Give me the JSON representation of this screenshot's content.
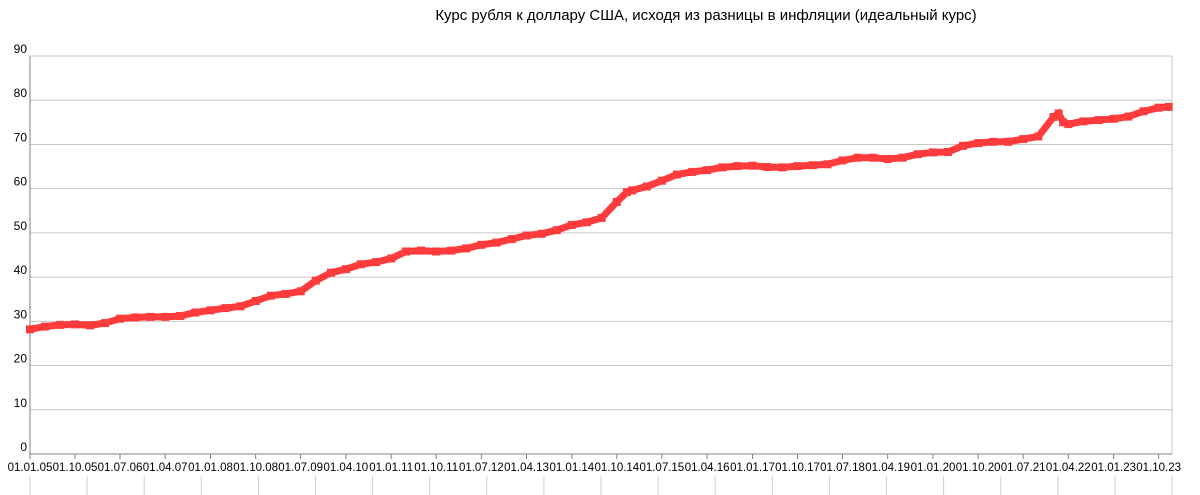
{
  "chart_data": {
    "type": "line",
    "title": "Курс рубля к доллару США, исходя из разницы в инфляции (идеальный курс)",
    "xlabel": "",
    "ylabel": "",
    "ylim": [
      0,
      90
    ],
    "yticks": [
      "0",
      "10",
      "20",
      "30",
      "40",
      "50",
      "60",
      "70",
      "80",
      "90"
    ],
    "grid": true,
    "legend": "none",
    "line_color": "#ff3b3b",
    "x_tick_labels": [
      "01.01.05",
      "01.10.05",
      "01.07.06",
      "01.04.07",
      "01.01.08",
      "01.10.08",
      "01.07.09",
      "01.04.10",
      "01.01.11",
      "01.10.11",
      "01.07.12",
      "01.04.13",
      "01.01.14",
      "01.10.14",
      "01.07.15",
      "01.04.16",
      "01.01.17",
      "01.10.17",
      "01.07.18",
      "01.04.19",
      "01.01.20",
      "01.10.20",
      "01.07.21",
      "01.04.22",
      "01.01.23",
      "01.10.23"
    ],
    "series": [
      {
        "x": [
          "01.01.05",
          "01.04.05",
          "01.07.05",
          "01.10.05",
          "01.01.06",
          "01.04.06",
          "01.07.06",
          "01.10.06",
          "01.01.07",
          "01.04.07",
          "01.07.07",
          "01.10.07",
          "01.01.08",
          "01.04.08",
          "01.07.08",
          "01.10.08",
          "01.01.09",
          "01.04.09",
          "01.07.09",
          "01.10.09",
          "01.01.10",
          "01.04.10",
          "01.07.10",
          "01.10.10",
          "01.01.11",
          "01.04.11",
          "01.07.11",
          "01.10.11",
          "01.01.12",
          "01.04.12",
          "01.07.12",
          "01.10.12",
          "01.01.13",
          "01.04.13",
          "01.07.13",
          "01.10.13",
          "01.01.14",
          "01.04.14",
          "01.07.14",
          "01.10.14",
          "01.12.14",
          "01.01.15",
          "01.04.15",
          "01.07.15",
          "01.10.15",
          "01.01.16",
          "01.04.16",
          "01.07.16",
          "01.10.16",
          "01.01.17",
          "01.04.17",
          "01.07.17",
          "01.10.17",
          "01.01.18",
          "01.04.18",
          "01.07.18",
          "01.10.18",
          "01.01.19",
          "01.04.19",
          "01.07.19",
          "01.10.19",
          "01.01.20",
          "01.04.20",
          "01.07.20",
          "01.10.20",
          "01.01.21",
          "01.04.21",
          "01.07.21",
          "01.10.21",
          "01.01.22",
          "01.02.22",
          "01.03.22",
          "01.04.22",
          "01.07.22",
          "01.10.22",
          "01.01.23",
          "01.04.23",
          "01.07.23",
          "01.10.23",
          "01.12.23"
        ],
        "values": [
          28.2,
          28.8,
          29.2,
          29.3,
          29.1,
          29.6,
          30.6,
          30.9,
          31.0,
          31.0,
          31.2,
          32.0,
          32.5,
          33.0,
          33.4,
          34.6,
          35.8,
          36.2,
          36.8,
          39.2,
          41.0,
          41.8,
          42.9,
          43.4,
          44.2,
          45.8,
          46.0,
          45.8,
          46.0,
          46.5,
          47.3,
          47.8,
          48.6,
          49.4,
          49.8,
          50.6,
          51.8,
          52.4,
          53.4,
          57.0,
          59.2,
          59.6,
          60.5,
          61.8,
          63.2,
          63.8,
          64.2,
          64.8,
          65.1,
          65.2,
          64.9,
          64.8,
          65.1,
          65.3,
          65.5,
          66.4,
          67.0,
          67.0,
          66.7,
          67.0,
          67.8,
          68.2,
          68.3,
          69.7,
          70.3,
          70.6,
          70.6,
          71.2,
          71.8,
          76.2,
          77.0,
          75.0,
          74.6,
          75.2,
          75.5,
          75.8,
          76.3,
          77.5,
          78.3,
          78.5
        ]
      }
    ]
  }
}
